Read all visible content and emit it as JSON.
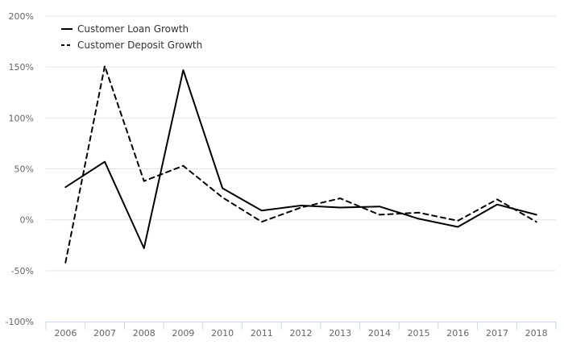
{
  "chart_data": {
    "type": "line",
    "x": [
      "2006",
      "2007",
      "2008",
      "2009",
      "2010",
      "2011",
      "2012",
      "2013",
      "2014",
      "2015",
      "2016",
      "2017",
      "2018"
    ],
    "series": [
      {
        "name": "Customer Loan Growth",
        "dash": "solid",
        "color": "#000000",
        "values": [
          32,
          57,
          -28,
          147,
          31,
          9,
          14,
          12,
          13,
          1,
          -7,
          15,
          5
        ]
      },
      {
        "name": "Customer Deposit Growth",
        "dash": "dashed",
        "color": "#000000",
        "values": [
          -42,
          151,
          38,
          53,
          22,
          -2,
          12,
          21,
          5,
          7,
          -1,
          20,
          -2
        ]
      }
    ],
    "yticks": [
      "200%",
      "150%",
      "100%",
      "50%",
      "0%",
      "-50%",
      "-100%"
    ],
    "ytick_values": [
      200,
      150,
      100,
      50,
      0,
      -50,
      -100
    ],
    "ylim": [
      -100,
      200
    ],
    "y_unit": "%",
    "title": "",
    "xlabel": "",
    "ylabel": "",
    "grid": true,
    "legend_position": "top-left"
  }
}
